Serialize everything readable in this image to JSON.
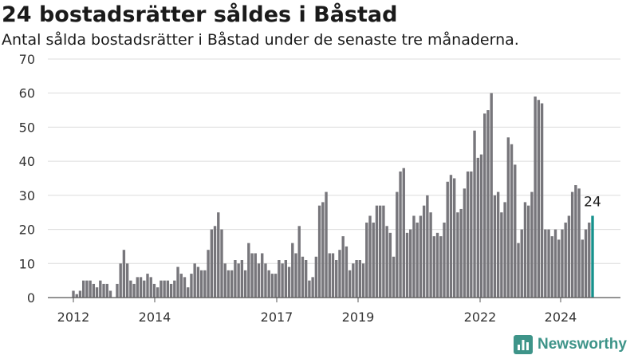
{
  "header": {
    "title": "24 bostadsrätter såldes i Båstad",
    "subtitle": "Antal sålda bostadsrätter i Båstad under de senaste tre månaderna."
  },
  "brand": {
    "name": "Newsworthy",
    "icon": "newsworthy-bar-chart-icon",
    "color": "#3e9489"
  },
  "colors": {
    "bar": "#77767b",
    "highlight": "#16918c",
    "grid": "#dcdcdc",
    "axis": "#555555"
  },
  "chart_data": {
    "type": "bar",
    "x_ticks": [
      "2012",
      "2014",
      "2017",
      "2019",
      "2022",
      "2024"
    ],
    "ylim": [
      0,
      70
    ],
    "y_ticks": [
      0,
      10,
      20,
      30,
      40,
      50,
      60,
      70
    ],
    "grid": true,
    "values": [
      2,
      1,
      2,
      5,
      5,
      5,
      4,
      3,
      5,
      4,
      4,
      2,
      0,
      4,
      10,
      14,
      10,
      5,
      4,
      6,
      6,
      5,
      7,
      6,
      4,
      3,
      5,
      5,
      5,
      4,
      5,
      9,
      7,
      6,
      3,
      7,
      10,
      9,
      8,
      8,
      14,
      20,
      21,
      25,
      20,
      10,
      8,
      8,
      11,
      10,
      11,
      8,
      16,
      13,
      13,
      10,
      13,
      10,
      8,
      7,
      7,
      11,
      10,
      11,
      9,
      16,
      13,
      21,
      12,
      11,
      5,
      6,
      12,
      27,
      28,
      31,
      13,
      13,
      11,
      14,
      18,
      15,
      8,
      10,
      11,
      11,
      10,
      22,
      24,
      22,
      27,
      27,
      27,
      21,
      19,
      12,
      31,
      37,
      38,
      19,
      20,
      24,
      22,
      24,
      27,
      30,
      25,
      18,
      19,
      18,
      22,
      34,
      36,
      35,
      25,
      26,
      32,
      37,
      37,
      49,
      41,
      42,
      54,
      55,
      60,
      30,
      31,
      25,
      28,
      47,
      45,
      39,
      16,
      20,
      28,
      27,
      31,
      59,
      58,
      57,
      20,
      20,
      18,
      20,
      17,
      20,
      22,
      24,
      31,
      33,
      32,
      17,
      20,
      22,
      24
    ],
    "last_value_label": "24"
  }
}
